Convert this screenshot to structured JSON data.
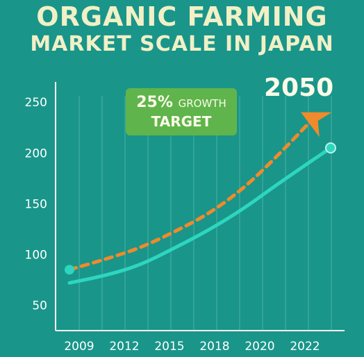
{
  "header": {
    "title_line1": "ORGANIC FARMING",
    "title_line2": "MARKET SCALE IN JAPAN"
  },
  "badge": {
    "percent": "25%",
    "growth": "GROWTH",
    "target": "TARGET"
  },
  "target_year": "2050",
  "colors": {
    "background": "#1a958a",
    "actual_line": "#2dd6bf",
    "target_line": "#f08a2b",
    "badge": "#5fb54c",
    "title": "#f1f0c6"
  },
  "chart_data": {
    "type": "line",
    "title": "ORGANIC FARMING MARKET SCALE IN JAPAN",
    "xlabel": "",
    "ylabel": "",
    "x_ticks": [
      "2009",
      "2012",
      "2015",
      "2018",
      "2020",
      "2022"
    ],
    "y_ticks": [
      50,
      100,
      150,
      200,
      250
    ],
    "xlim": [
      2009,
      2024
    ],
    "ylim": [
      25,
      270
    ],
    "grid": true,
    "series": [
      {
        "style": "solid",
        "color": "#2dd6bf",
        "points": [
          [
            2009,
            72
          ],
          [
            2011,
            79
          ],
          [
            2013,
            89
          ],
          [
            2015,
            106
          ],
          [
            2017,
            124
          ],
          [
            2019,
            145
          ],
          [
            2021,
            170
          ],
          [
            2024,
            205
          ]
        ]
      },
      {
        "style": "dashed",
        "color": "#f08a2b",
        "points": [
          [
            2009,
            85
          ],
          [
            2011,
            95
          ],
          [
            2013,
            106
          ],
          [
            2015,
            122
          ],
          [
            2017,
            140
          ],
          [
            2019,
            165
          ],
          [
            2021,
            198
          ],
          [
            2023,
            234
          ]
        ]
      }
    ]
  }
}
